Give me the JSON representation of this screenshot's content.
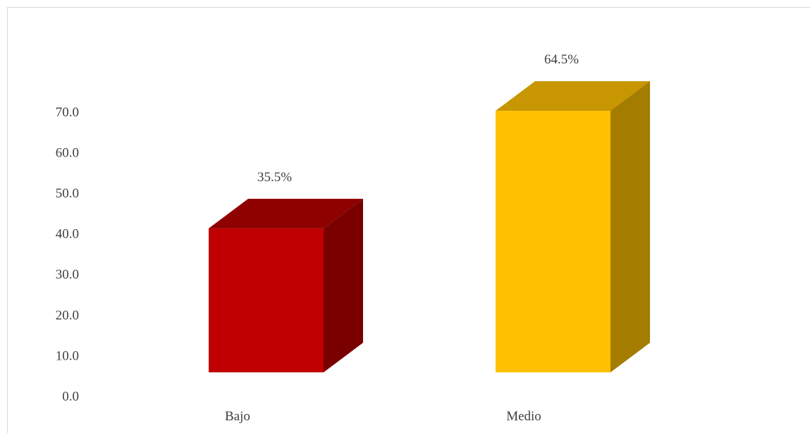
{
  "chart_data": {
    "type": "bar",
    "style": "3d-column",
    "categories": [
      "Bajo",
      "Medio"
    ],
    "values": [
      35.5,
      64.5
    ],
    "data_labels": [
      "35.5%",
      "64.5%"
    ],
    "y_ticks": [
      "0.0",
      "10.0",
      "20.0",
      "30.0",
      "40.0",
      "50.0",
      "60.0",
      "70.0"
    ],
    "ylim": [
      0,
      70
    ],
    "grid": false,
    "legend": "none",
    "colors": [
      {
        "front": "#c00000",
        "top": "#8f0000",
        "side": "#7a0000"
      },
      {
        "front": "#ffc000",
        "top": "#c89600",
        "side": "#a37c00"
      }
    ]
  }
}
